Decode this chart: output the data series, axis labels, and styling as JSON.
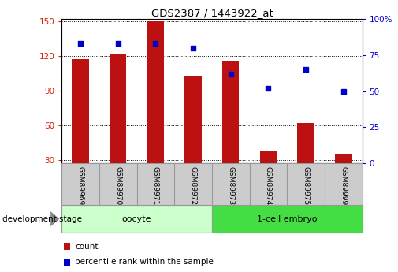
{
  "title": "GDS2387 / 1443922_at",
  "samples": [
    "GSM89969",
    "GSM89970",
    "GSM89971",
    "GSM89972",
    "GSM89973",
    "GSM89974",
    "GSM89975",
    "GSM89999"
  ],
  "counts": [
    117,
    122,
    150,
    103,
    116,
    38,
    62,
    35
  ],
  "percentiles": [
    83,
    83,
    83,
    80,
    62,
    52,
    65,
    50
  ],
  "ylim_left": [
    27,
    152
  ],
  "ylim_right": [
    0,
    100
  ],
  "yticks_left": [
    30,
    60,
    90,
    120,
    150
  ],
  "yticks_right": [
    0,
    25,
    50,
    75,
    100
  ],
  "yticklabels_right": [
    "0",
    "25",
    "50",
    "75",
    "100%"
  ],
  "bar_color": "#bb1111",
  "dot_color": "#0000cc",
  "bar_bottom": 27,
  "group_oocyte_color": "#ccffcc",
  "group_embryo_color": "#44dd44",
  "group_oocyte_label": "oocyte",
  "group_embryo_label": "1-cell embryo",
  "legend_count_label": "count",
  "legend_pct_label": "percentile rank within the sample",
  "dev_stage_label": "development stage",
  "grid_color": "#000000",
  "axis_color_left": "#cc2200",
  "axis_color_right": "#0000cc",
  "background_color": "#ffffff",
  "tick_area_bg": "#cccccc",
  "fig_width": 5.05,
  "fig_height": 3.45
}
